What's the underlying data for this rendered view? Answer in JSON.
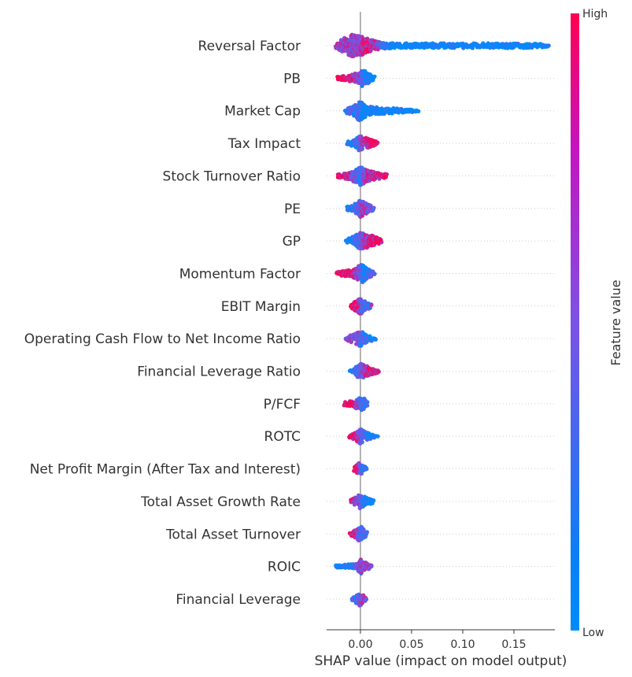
{
  "chart_data": {
    "type": "scatter",
    "subtype": "shap-beeswarm",
    "title": "",
    "xlabel": "SHAP value (impact on model output)",
    "xlim": [
      -0.033,
      0.19
    ],
    "x_ticks": [
      0.0,
      0.05,
      0.1,
      0.15
    ],
    "x_tick_labels": [
      "0.00",
      "0.05",
      "0.10",
      "0.15"
    ],
    "colorbar": {
      "label": "Feature value",
      "high_label": "High",
      "low_label": "Low",
      "low_color": "#008bfb",
      "mid_color": "#7c52e6",
      "high_color": "#ff0052"
    },
    "grid": false,
    "zero_line": true,
    "features": [
      {
        "name": "Reversal Factor",
        "min": -0.024,
        "max": 0.184,
        "density": [
          [
            -0.024,
            3
          ],
          [
            -0.015,
            10
          ],
          [
            -0.008,
            14
          ],
          [
            0.0,
            12
          ],
          [
            0.01,
            8
          ],
          [
            0.02,
            4
          ],
          [
            0.04,
            3
          ],
          [
            0.08,
            3
          ],
          [
            0.12,
            3
          ],
          [
            0.16,
            3
          ],
          [
            0.184,
            2
          ]
        ],
        "color_curve": [
          [
            -0.024,
            0.6
          ],
          [
            -0.005,
            0.55
          ],
          [
            0.01,
            0.85
          ],
          [
            0.03,
            0.0
          ],
          [
            0.184,
            0.0
          ]
        ]
      },
      {
        "name": "PB",
        "min": -0.022,
        "max": 0.014,
        "density": [
          [
            -0.022,
            2
          ],
          [
            -0.01,
            4
          ],
          [
            -0.002,
            7
          ],
          [
            0.003,
            11
          ],
          [
            0.008,
            6
          ],
          [
            0.014,
            2
          ]
        ],
        "color_curve": [
          [
            -0.022,
            1.0
          ],
          [
            -0.008,
            0.85
          ],
          [
            0.0,
            0.45
          ],
          [
            0.006,
            0.05
          ],
          [
            0.014,
            0.0
          ]
        ]
      },
      {
        "name": "Market Cap",
        "min": -0.015,
        "max": 0.058,
        "density": [
          [
            -0.015,
            2
          ],
          [
            -0.004,
            8
          ],
          [
            0.0,
            14
          ],
          [
            0.006,
            6
          ],
          [
            0.02,
            4
          ],
          [
            0.04,
            3
          ],
          [
            0.058,
            1
          ]
        ],
        "color_curve": [
          [
            -0.015,
            0.2
          ],
          [
            -0.003,
            0.3
          ],
          [
            0.003,
            0.05
          ],
          [
            0.058,
            0.0
          ]
        ]
      },
      {
        "name": "Tax Impact",
        "min": -0.013,
        "max": 0.018,
        "density": [
          [
            -0.013,
            2
          ],
          [
            -0.005,
            5
          ],
          [
            0.0,
            10
          ],
          [
            0.006,
            7
          ],
          [
            0.012,
            4
          ],
          [
            0.018,
            1
          ]
        ],
        "color_curve": [
          [
            -0.013,
            0.1
          ],
          [
            -0.004,
            0.2
          ],
          [
            0.002,
            0.55
          ],
          [
            0.008,
            0.85
          ],
          [
            0.018,
            0.95
          ]
        ]
      },
      {
        "name": "Stock Turnover Ratio",
        "min": -0.022,
        "max": 0.026,
        "density": [
          [
            -0.022,
            2
          ],
          [
            -0.01,
            5
          ],
          [
            0.0,
            12
          ],
          [
            0.008,
            7
          ],
          [
            0.018,
            4
          ],
          [
            0.026,
            2
          ]
        ],
        "color_curve": [
          [
            -0.022,
            0.95
          ],
          [
            -0.008,
            0.6
          ],
          [
            0.0,
            0.15
          ],
          [
            0.008,
            0.75
          ],
          [
            0.026,
            0.95
          ]
        ]
      },
      {
        "name": "PE",
        "min": -0.013,
        "max": 0.013,
        "density": [
          [
            -0.013,
            2
          ],
          [
            -0.005,
            6
          ],
          [
            0.0,
            11
          ],
          [
            0.006,
            6
          ],
          [
            0.013,
            2
          ]
        ],
        "color_curve": [
          [
            -0.013,
            0.1
          ],
          [
            -0.003,
            0.25
          ],
          [
            0.002,
            0.6
          ],
          [
            0.008,
            0.5
          ],
          [
            0.013,
            0.45
          ]
        ]
      },
      {
        "name": "GP",
        "min": -0.014,
        "max": 0.021,
        "density": [
          [
            -0.014,
            2
          ],
          [
            -0.006,
            6
          ],
          [
            0.0,
            11
          ],
          [
            0.008,
            8
          ],
          [
            0.015,
            5
          ],
          [
            0.021,
            2
          ]
        ],
        "color_curve": [
          [
            -0.014,
            0.1
          ],
          [
            -0.004,
            0.2
          ],
          [
            0.003,
            0.55
          ],
          [
            0.01,
            0.85
          ],
          [
            0.021,
            0.9
          ]
        ]
      },
      {
        "name": "Momentum Factor",
        "min": -0.023,
        "max": 0.014,
        "density": [
          [
            -0.023,
            2
          ],
          [
            -0.012,
            4
          ],
          [
            -0.004,
            7
          ],
          [
            0.001,
            12
          ],
          [
            0.007,
            6
          ],
          [
            0.014,
            2
          ]
        ],
        "color_curve": [
          [
            -0.023,
            1.0
          ],
          [
            -0.01,
            0.85
          ],
          [
            -0.002,
            0.5
          ],
          [
            0.004,
            0.1
          ],
          [
            0.014,
            0.4
          ]
        ]
      },
      {
        "name": "EBIT Margin",
        "min": -0.009,
        "max": 0.011,
        "density": [
          [
            -0.009,
            3
          ],
          [
            -0.004,
            7
          ],
          [
            0.0,
            10
          ],
          [
            0.005,
            5
          ],
          [
            0.011,
            2
          ]
        ],
        "color_curve": [
          [
            -0.009,
            0.95
          ],
          [
            -0.003,
            0.8
          ],
          [
            0.002,
            0.35
          ],
          [
            0.006,
            0.2
          ],
          [
            0.011,
            0.45
          ]
        ]
      },
      {
        "name": "Operating Cash Flow to Net Income Ratio",
        "min": -0.014,
        "max": 0.016,
        "density": [
          [
            -0.014,
            2
          ],
          [
            -0.006,
            6
          ],
          [
            0.0,
            10
          ],
          [
            0.006,
            5
          ],
          [
            0.016,
            1
          ]
        ],
        "color_curve": [
          [
            -0.014,
            0.5
          ],
          [
            -0.004,
            0.55
          ],
          [
            0.002,
            0.3
          ],
          [
            0.008,
            0.2
          ],
          [
            0.016,
            0.0
          ]
        ]
      },
      {
        "name": "Financial Leverage Ratio",
        "min": -0.01,
        "max": 0.018,
        "density": [
          [
            -0.01,
            2
          ],
          [
            -0.004,
            6
          ],
          [
            0.0,
            10
          ],
          [
            0.007,
            6
          ],
          [
            0.013,
            4
          ],
          [
            0.018,
            2
          ]
        ],
        "color_curve": [
          [
            -0.01,
            0.1
          ],
          [
            -0.003,
            0.2
          ],
          [
            0.003,
            0.55
          ],
          [
            0.01,
            0.9
          ],
          [
            0.018,
            0.95
          ]
        ]
      },
      {
        "name": "P/FCF",
        "min": -0.016,
        "max": 0.007,
        "density": [
          [
            -0.016,
            2
          ],
          [
            -0.008,
            4
          ],
          [
            -0.002,
            7
          ],
          [
            0.001,
            10
          ],
          [
            0.007,
            2
          ]
        ],
        "color_curve": [
          [
            -0.016,
            1.0
          ],
          [
            -0.006,
            0.85
          ],
          [
            0.0,
            0.35
          ],
          [
            0.004,
            0.15
          ],
          [
            0.007,
            0.2
          ]
        ]
      },
      {
        "name": "ROTC",
        "min": -0.011,
        "max": 0.017,
        "density": [
          [
            -0.011,
            2
          ],
          [
            -0.004,
            6
          ],
          [
            0.0,
            10
          ],
          [
            0.006,
            5
          ],
          [
            0.017,
            1
          ]
        ],
        "color_curve": [
          [
            -0.011,
            0.95
          ],
          [
            -0.004,
            0.8
          ],
          [
            0.001,
            0.4
          ],
          [
            0.006,
            0.2
          ],
          [
            0.017,
            0.0
          ]
        ]
      },
      {
        "name": "Net Profit Margin (After Tax and Interest)",
        "min": -0.006,
        "max": 0.006,
        "density": [
          [
            -0.006,
            3
          ],
          [
            -0.002,
            7
          ],
          [
            0.0,
            8
          ],
          [
            0.003,
            5
          ],
          [
            0.006,
            2
          ]
        ],
        "color_curve": [
          [
            -0.006,
            0.9
          ],
          [
            -0.002,
            0.7
          ],
          [
            0.001,
            0.3
          ],
          [
            0.006,
            0.2
          ]
        ]
      },
      {
        "name": "Total Asset Growth Rate",
        "min": -0.009,
        "max": 0.013,
        "density": [
          [
            -0.009,
            2
          ],
          [
            -0.003,
            6
          ],
          [
            0.0,
            10
          ],
          [
            0.005,
            5
          ],
          [
            0.013,
            2
          ]
        ],
        "color_curve": [
          [
            -0.009,
            0.8
          ],
          [
            -0.002,
            0.55
          ],
          [
            0.002,
            0.15
          ],
          [
            0.006,
            0.1
          ],
          [
            0.013,
            0.0
          ]
        ]
      },
      {
        "name": "Total Asset Turnover",
        "min": -0.01,
        "max": 0.007,
        "density": [
          [
            -0.01,
            2
          ],
          [
            -0.004,
            6
          ],
          [
            0.0,
            10
          ],
          [
            0.004,
            5
          ],
          [
            0.007,
            2
          ]
        ],
        "color_curve": [
          [
            -0.01,
            0.95
          ],
          [
            -0.004,
            0.75
          ],
          [
            0.001,
            0.3
          ],
          [
            0.004,
            0.2
          ],
          [
            0.007,
            0.3
          ]
        ]
      },
      {
        "name": "ROIC",
        "min": -0.024,
        "max": 0.011,
        "density": [
          [
            -0.024,
            2
          ],
          [
            -0.01,
            3
          ],
          [
            -0.002,
            6
          ],
          [
            0.0,
            10
          ],
          [
            0.005,
            5
          ],
          [
            0.011,
            2
          ]
        ],
        "color_curve": [
          [
            -0.024,
            0.05
          ],
          [
            -0.008,
            0.1
          ],
          [
            -0.001,
            0.5
          ],
          [
            0.003,
            0.55
          ],
          [
            0.011,
            0.5
          ]
        ]
      },
      {
        "name": "Financial Leverage",
        "min": -0.008,
        "max": 0.006,
        "density": [
          [
            -0.008,
            2
          ],
          [
            -0.003,
            6
          ],
          [
            0.0,
            9
          ],
          [
            0.003,
            5
          ],
          [
            0.006,
            2
          ]
        ],
        "color_curve": [
          [
            -0.008,
            0.2
          ],
          [
            -0.002,
            0.35
          ],
          [
            0.001,
            0.55
          ],
          [
            0.004,
            0.6
          ],
          [
            0.006,
            0.6
          ]
        ]
      }
    ]
  }
}
